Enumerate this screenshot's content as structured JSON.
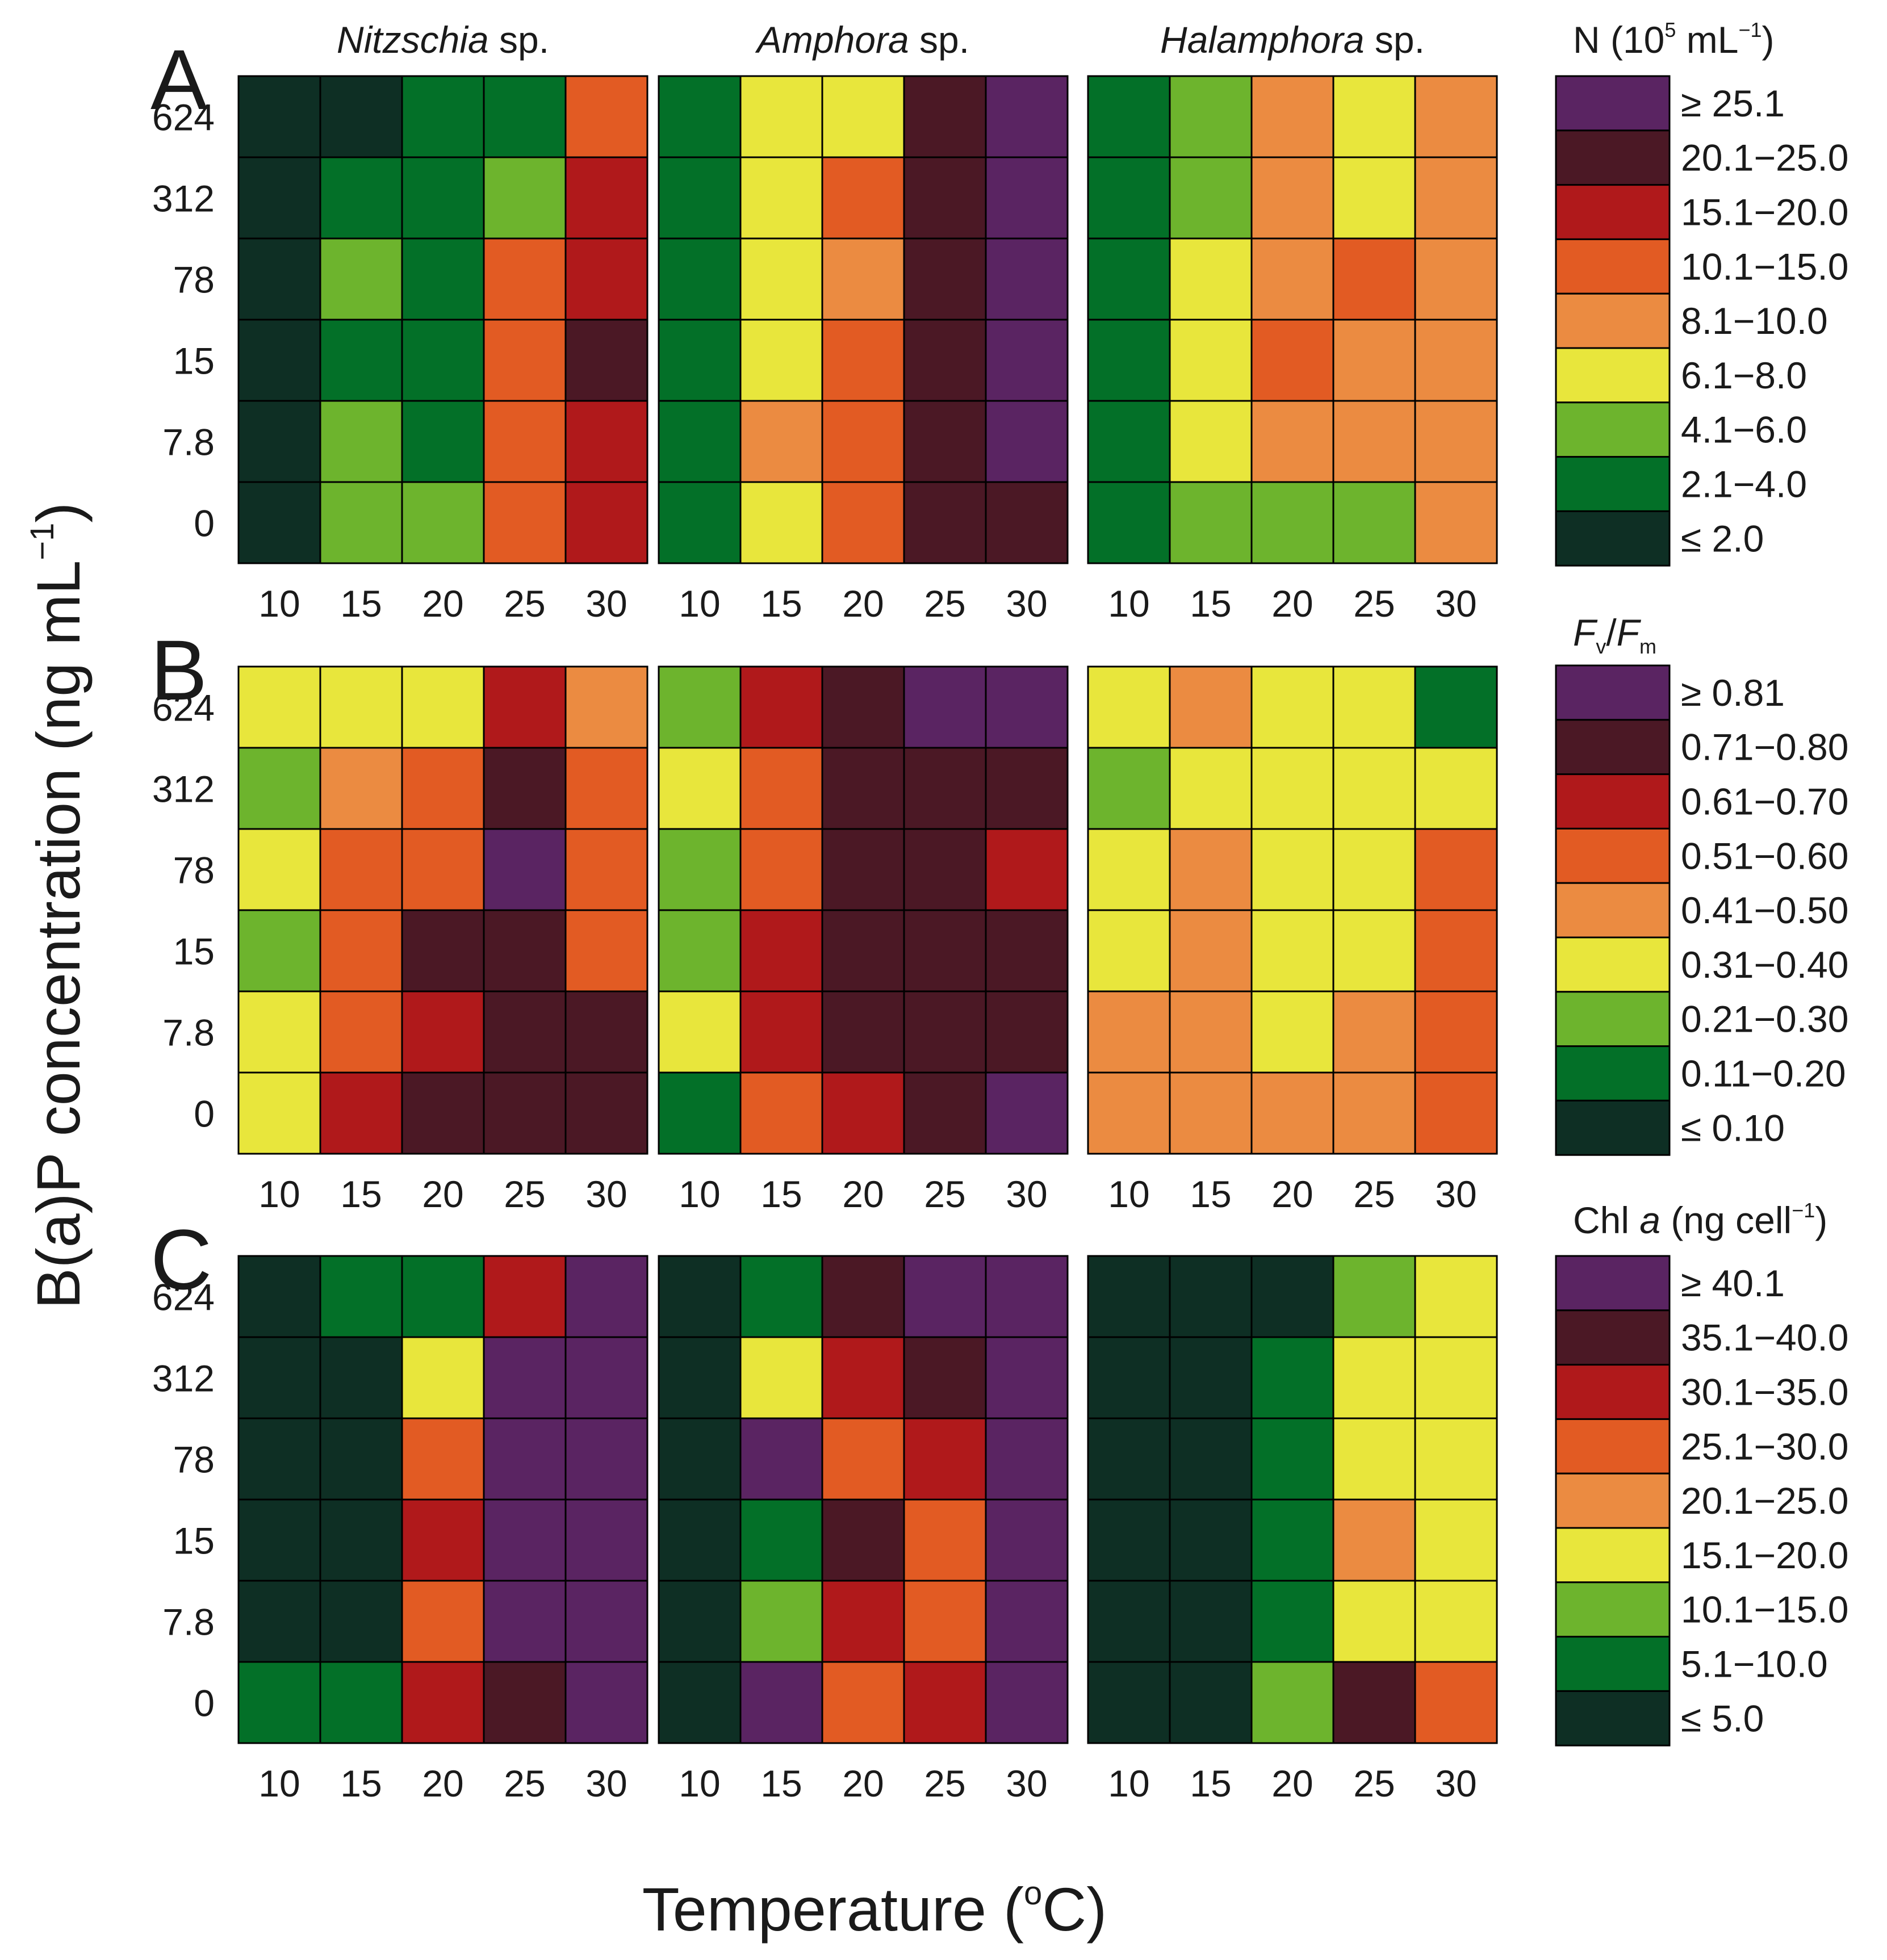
{
  "chart_data": {
    "type": "heatmap",
    "x_label_prefix": "Temperature (",
    "x_label_unit": "o",
    "x_label_suffix": "C)",
    "y_label_main": "B(a)P concentration (ng mL",
    "y_label_exp": "−1",
    "y_label_close": ")",
    "x_categories": [
      "10",
      "15",
      "20",
      "25",
      "30"
    ],
    "y_categories": [
      "624",
      "312",
      "78",
      "15",
      "7.8",
      "0"
    ],
    "species": [
      {
        "name": "Nitzschia",
        "suffix": " sp."
      },
      {
        "name": "Amphora",
        "suffix": " sp."
      },
      {
        "name": "Halamphora",
        "suffix": " sp."
      }
    ],
    "colors": [
      "#0e2f24",
      "#037028",
      "#6db42d",
      "#e8e63c",
      "#eb8b41",
      "#e25b23",
      "#b0191b",
      "#4b1825",
      "#5a2462"
    ],
    "panels": [
      {
        "letter": "A",
        "legend_title": {
          "base": "N (10",
          "sup1": "5",
          "mid": " mL",
          "sup2": "−1",
          "close": ")"
        },
        "legend_labels": [
          "≤ 2.0",
          "2.1−4.0",
          "4.1−6.0",
          "6.1−8.0",
          "8.1−10.0",
          "10.1−15.0",
          "15.1−20.0",
          "20.1−25.0",
          "≥ 25.1"
        ],
        "matrices": [
          [
            [
              0,
              0,
              1,
              1,
              5
            ],
            [
              0,
              1,
              1,
              2,
              6
            ],
            [
              0,
              2,
              1,
              5,
              6
            ],
            [
              0,
              1,
              1,
              5,
              7
            ],
            [
              0,
              2,
              1,
              5,
              6
            ],
            [
              0,
              2,
              2,
              5,
              6
            ]
          ],
          [
            [
              1,
              3,
              3,
              7,
              8
            ],
            [
              1,
              3,
              5,
              7,
              8
            ],
            [
              1,
              3,
              4,
              7,
              8
            ],
            [
              1,
              3,
              5,
              7,
              8
            ],
            [
              1,
              4,
              5,
              7,
              8
            ],
            [
              1,
              3,
              5,
              7,
              7
            ]
          ],
          [
            [
              1,
              2,
              4,
              3,
              4
            ],
            [
              1,
              2,
              4,
              3,
              4
            ],
            [
              1,
              3,
              4,
              5,
              4
            ],
            [
              1,
              3,
              5,
              4,
              4
            ],
            [
              1,
              3,
              4,
              4,
              4
            ],
            [
              1,
              2,
              2,
              2,
              4
            ]
          ]
        ]
      },
      {
        "letter": "B",
        "legend_title": {
          "f1": "F",
          "s1": "v",
          "slash": "/",
          "f2": "F",
          "s2": "m"
        },
        "legend_labels": [
          "≤ 0.10",
          "0.11−0.20",
          "0.21−0.30",
          "0.31−0.40",
          "0.41−0.50",
          "0.51−0.60",
          "0.61−0.70",
          "0.71−0.80",
          "≥ 0.81"
        ],
        "matrices": [
          [
            [
              3,
              3,
              3,
              6,
              4
            ],
            [
              2,
              4,
              5,
              7,
              5
            ],
            [
              3,
              5,
              5,
              8,
              5
            ],
            [
              2,
              5,
              7,
              7,
              5
            ],
            [
              3,
              5,
              6,
              7,
              7
            ],
            [
              3,
              6,
              7,
              7,
              7
            ]
          ],
          [
            [
              2,
              6,
              7,
              8,
              8
            ],
            [
              3,
              5,
              7,
              7,
              7
            ],
            [
              2,
              5,
              7,
              7,
              6
            ],
            [
              2,
              6,
              7,
              7,
              7
            ],
            [
              3,
              6,
              7,
              7,
              7
            ],
            [
              1,
              5,
              6,
              7,
              8
            ]
          ],
          [
            [
              3,
              4,
              3,
              3,
              1
            ],
            [
              2,
              3,
              3,
              3,
              3
            ],
            [
              3,
              4,
              3,
              3,
              5
            ],
            [
              3,
              4,
              3,
              3,
              5
            ],
            [
              4,
              4,
              3,
              4,
              5
            ],
            [
              4,
              4,
              4,
              4,
              5
            ]
          ]
        ]
      },
      {
        "letter": "C",
        "legend_title": {
          "base": "Chl ",
          "ital": "a",
          "mid": " (ng cell",
          "sup": "−1",
          "close": ")"
        },
        "legend_labels": [
          "≤ 5.0",
          "5.1−10.0",
          "10.1−15.0",
          "15.1−20.0",
          "20.1−25.0",
          "25.1−30.0",
          "30.1−35.0",
          "35.1−40.0",
          "≥ 40.1"
        ],
        "matrices": [
          [
            [
              0,
              1,
              1,
              6,
              8
            ],
            [
              0,
              0,
              3,
              8,
              8
            ],
            [
              0,
              0,
              5,
              8,
              8
            ],
            [
              0,
              0,
              6,
              8,
              8
            ],
            [
              0,
              0,
              5,
              8,
              8
            ],
            [
              1,
              1,
              6,
              7,
              8
            ]
          ],
          [
            [
              0,
              1,
              7,
              8,
              8
            ],
            [
              0,
              3,
              6,
              7,
              8
            ],
            [
              0,
              8,
              5,
              6,
              8
            ],
            [
              0,
              1,
              7,
              5,
              8
            ],
            [
              0,
              2,
              6,
              5,
              8
            ],
            [
              0,
              8,
              5,
              6,
              8
            ]
          ],
          [
            [
              0,
              0,
              0,
              2,
              3
            ],
            [
              0,
              0,
              1,
              3,
              3
            ],
            [
              0,
              0,
              1,
              3,
              3
            ],
            [
              0,
              0,
              1,
              4,
              3
            ],
            [
              0,
              0,
              1,
              3,
              3
            ],
            [
              0,
              0,
              2,
              7,
              5
            ]
          ]
        ]
      }
    ]
  }
}
